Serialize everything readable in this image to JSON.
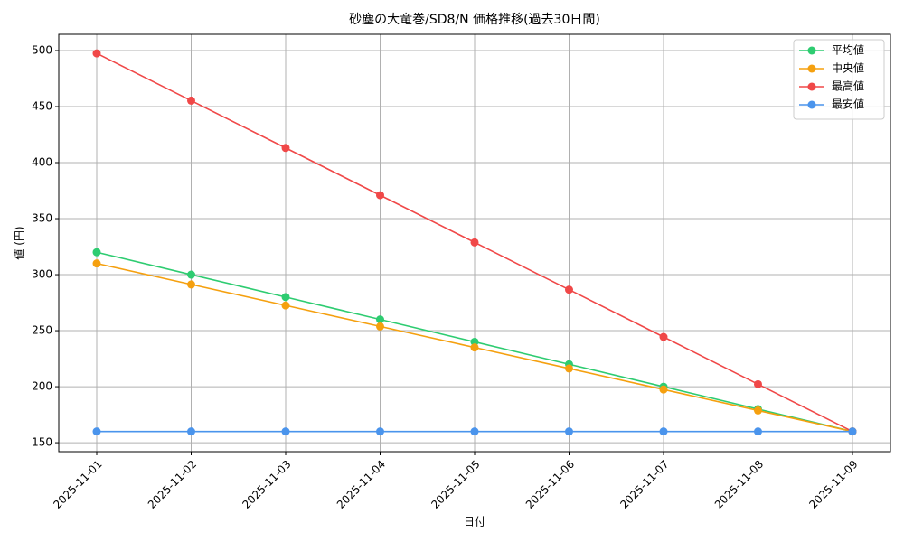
{
  "chart_data": {
    "type": "line",
    "title": "砂塵の大竜巻/SD8/N 価格推移(過去30日間)",
    "x_label": "日付",
    "y_label": "値 (円)",
    "categories": [
      "2025-11-01",
      "2025-11-02",
      "2025-11-03",
      "2025-11-04",
      "2025-11-05",
      "2025-11-06",
      "2025-11-07",
      "2025-11-08",
      "2025-11-09"
    ],
    "series": [
      {
        "name": "平均値",
        "color": "#2ecc71",
        "values": [
          320,
          300,
          280,
          260,
          240,
          220,
          200,
          180,
          160
        ]
      },
      {
        "name": "中央値",
        "color": "#f5a00f",
        "values": [
          310,
          291.25,
          272.5,
          253.75,
          235,
          216.25,
          197.5,
          178.75,
          160
        ]
      },
      {
        "name": "最高値",
        "color": "#f04848",
        "values": [
          497.5,
          455.3,
          413.1,
          370.9,
          328.8,
          286.6,
          244.4,
          202.2,
          160
        ]
      },
      {
        "name": "最安値",
        "color": "#4a94ec",
        "values": [
          160,
          160,
          160,
          160,
          160,
          160,
          160,
          160,
          160
        ]
      }
    ],
    "ylim": [
      142,
      514.5
    ],
    "yticks": [
      150,
      200,
      250,
      300,
      350,
      400,
      450,
      500
    ],
    "grid": true,
    "legend": "upper right"
  }
}
